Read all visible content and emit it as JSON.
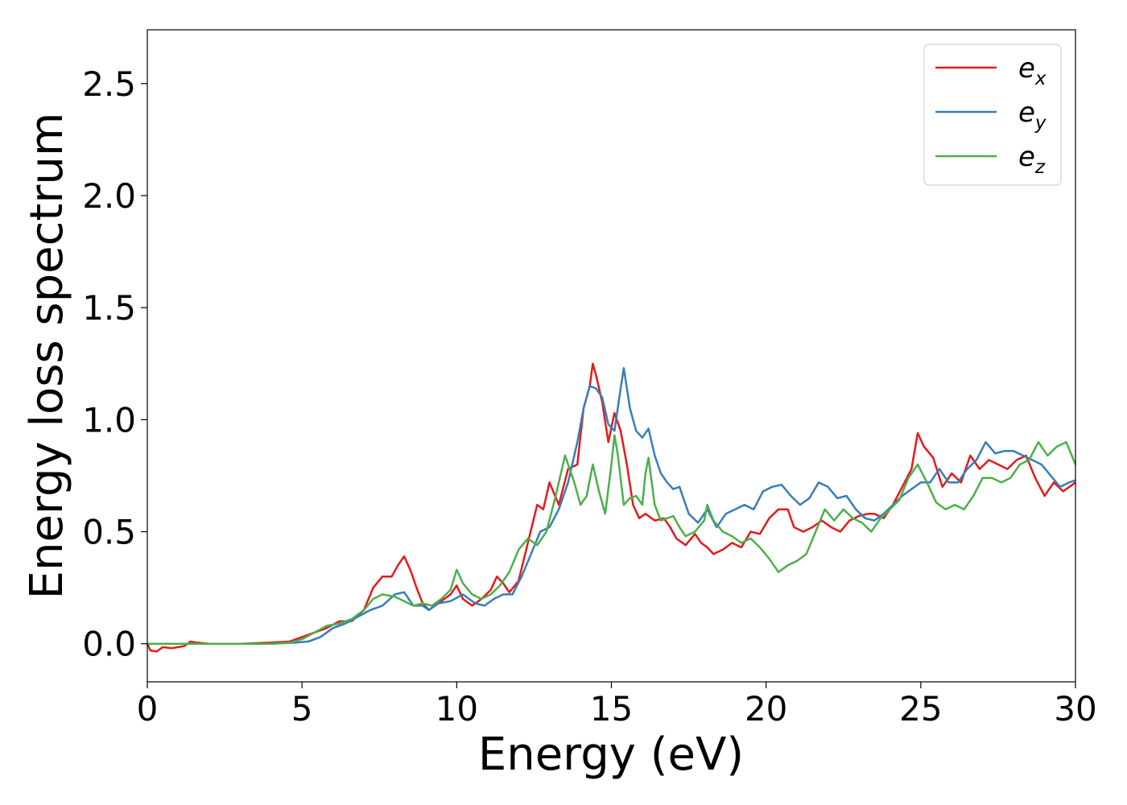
{
  "chart_data": {
    "type": "line",
    "title": "",
    "xlabel": "Energy (eV)",
    "ylabel": "Energy loss spectrum",
    "xlim": [
      0,
      30
    ],
    "ylim": [
      -0.17,
      2.74
    ],
    "xticks": [
      0,
      5,
      10,
      15,
      20,
      25,
      30
    ],
    "xtick_labels": [
      "0",
      "5",
      "10",
      "15",
      "20",
      "25",
      "30"
    ],
    "yticks": [
      0.0,
      0.5,
      1.0,
      1.5,
      2.0,
      2.5
    ],
    "ytick_labels": [
      "0.0",
      "0.5",
      "1.0",
      "1.5",
      "2.0",
      "2.5"
    ],
    "grid": false,
    "legend_position": "top-right",
    "series": [
      {
        "name": "e_x",
        "legend_base": "e",
        "legend_sub": "x",
        "color": "#e41a1c",
        "points": [
          [
            0,
            0.0
          ],
          [
            0.1,
            -0.03
          ],
          [
            0.3,
            -0.035
          ],
          [
            0.5,
            -0.015
          ],
          [
            0.8,
            -0.02
          ],
          [
            1.0,
            -0.015
          ],
          [
            1.2,
            -0.01
          ],
          [
            1.4,
            0.01
          ],
          [
            1.6,
            0.005
          ],
          [
            2.0,
            0.0
          ],
          [
            3.0,
            0.0
          ],
          [
            4.0,
            0.005
          ],
          [
            4.6,
            0.01
          ],
          [
            5.0,
            0.03
          ],
          [
            5.4,
            0.05
          ],
          [
            5.8,
            0.07
          ],
          [
            6.2,
            0.1
          ],
          [
            6.6,
            0.1
          ],
          [
            7.0,
            0.15
          ],
          [
            7.3,
            0.25
          ],
          [
            7.6,
            0.3
          ],
          [
            7.9,
            0.3
          ],
          [
            8.1,
            0.35
          ],
          [
            8.3,
            0.39
          ],
          [
            8.5,
            0.33
          ],
          [
            8.7,
            0.25
          ],
          [
            8.9,
            0.18
          ],
          [
            9.1,
            0.15
          ],
          [
            9.3,
            0.17
          ],
          [
            9.6,
            0.2
          ],
          [
            9.8,
            0.22
          ],
          [
            10.0,
            0.26
          ],
          [
            10.2,
            0.2
          ],
          [
            10.5,
            0.17
          ],
          [
            10.8,
            0.2
          ],
          [
            11.1,
            0.24
          ],
          [
            11.3,
            0.3
          ],
          [
            11.5,
            0.27
          ],
          [
            11.7,
            0.23
          ],
          [
            12.0,
            0.28
          ],
          [
            12.3,
            0.45
          ],
          [
            12.6,
            0.62
          ],
          [
            12.8,
            0.6
          ],
          [
            13.0,
            0.72
          ],
          [
            13.3,
            0.62
          ],
          [
            13.6,
            0.78
          ],
          [
            13.9,
            0.8
          ],
          [
            14.1,
            1.05
          ],
          [
            14.3,
            1.15
          ],
          [
            14.4,
            1.25
          ],
          [
            14.5,
            1.2
          ],
          [
            14.7,
            1.08
          ],
          [
            14.9,
            0.9
          ],
          [
            15.1,
            1.03
          ],
          [
            15.3,
            0.95
          ],
          [
            15.5,
            0.8
          ],
          [
            15.7,
            0.62
          ],
          [
            15.9,
            0.56
          ],
          [
            16.1,
            0.58
          ],
          [
            16.4,
            0.55
          ],
          [
            16.7,
            0.56
          ],
          [
            16.9,
            0.52
          ],
          [
            17.1,
            0.47
          ],
          [
            17.4,
            0.44
          ],
          [
            17.7,
            0.49
          ],
          [
            17.9,
            0.45
          ],
          [
            18.1,
            0.43
          ],
          [
            18.3,
            0.4
          ],
          [
            18.6,
            0.42
          ],
          [
            18.9,
            0.45
          ],
          [
            19.2,
            0.43
          ],
          [
            19.5,
            0.5
          ],
          [
            19.8,
            0.49
          ],
          [
            20.1,
            0.56
          ],
          [
            20.4,
            0.6
          ],
          [
            20.7,
            0.6
          ],
          [
            20.9,
            0.52
          ],
          [
            21.2,
            0.5
          ],
          [
            21.5,
            0.52
          ],
          [
            21.8,
            0.55
          ],
          [
            22.1,
            0.52
          ],
          [
            22.4,
            0.5
          ],
          [
            22.7,
            0.55
          ],
          [
            23.0,
            0.57
          ],
          [
            23.3,
            0.58
          ],
          [
            23.5,
            0.58
          ],
          [
            23.8,
            0.56
          ],
          [
            24.1,
            0.62
          ],
          [
            24.4,
            0.7
          ],
          [
            24.7,
            0.78
          ],
          [
            24.9,
            0.94
          ],
          [
            25.1,
            0.88
          ],
          [
            25.4,
            0.83
          ],
          [
            25.7,
            0.7
          ],
          [
            26.0,
            0.76
          ],
          [
            26.3,
            0.72
          ],
          [
            26.6,
            0.84
          ],
          [
            26.9,
            0.78
          ],
          [
            27.2,
            0.82
          ],
          [
            27.5,
            0.8
          ],
          [
            27.8,
            0.78
          ],
          [
            28.1,
            0.82
          ],
          [
            28.4,
            0.84
          ],
          [
            28.7,
            0.74
          ],
          [
            29.0,
            0.66
          ],
          [
            29.3,
            0.72
          ],
          [
            29.6,
            0.68
          ],
          [
            30.0,
            0.72
          ]
        ]
      },
      {
        "name": "e_y",
        "legend_base": "e",
        "legend_sub": "y",
        "color": "#377eb8",
        "points": [
          [
            0,
            0.0
          ],
          [
            1.0,
            0.0
          ],
          [
            2.0,
            0.0
          ],
          [
            3.0,
            0.0
          ],
          [
            4.0,
            0.0
          ],
          [
            4.8,
            0.005
          ],
          [
            5.2,
            0.01
          ],
          [
            5.6,
            0.03
          ],
          [
            6.0,
            0.07
          ],
          [
            6.4,
            0.09
          ],
          [
            6.8,
            0.12
          ],
          [
            7.2,
            0.15
          ],
          [
            7.6,
            0.17
          ],
          [
            8.0,
            0.22
          ],
          [
            8.3,
            0.23
          ],
          [
            8.6,
            0.17
          ],
          [
            8.9,
            0.17
          ],
          [
            9.1,
            0.15
          ],
          [
            9.4,
            0.18
          ],
          [
            9.8,
            0.19
          ],
          [
            10.2,
            0.22
          ],
          [
            10.6,
            0.18
          ],
          [
            10.9,
            0.17
          ],
          [
            11.2,
            0.2
          ],
          [
            11.5,
            0.22
          ],
          [
            11.8,
            0.22
          ],
          [
            12.1,
            0.3
          ],
          [
            12.4,
            0.4
          ],
          [
            12.7,
            0.5
          ],
          [
            13.0,
            0.52
          ],
          [
            13.3,
            0.6
          ],
          [
            13.6,
            0.72
          ],
          [
            13.9,
            0.9
          ],
          [
            14.1,
            1.05
          ],
          [
            14.3,
            1.15
          ],
          [
            14.5,
            1.14
          ],
          [
            14.7,
            1.1
          ],
          [
            14.9,
            0.98
          ],
          [
            15.1,
            0.95
          ],
          [
            15.3,
            1.14
          ],
          [
            15.4,
            1.23
          ],
          [
            15.6,
            1.05
          ],
          [
            15.8,
            0.95
          ],
          [
            16.0,
            0.92
          ],
          [
            16.2,
            0.96
          ],
          [
            16.4,
            0.84
          ],
          [
            16.6,
            0.76
          ],
          [
            16.8,
            0.72
          ],
          [
            17.0,
            0.69
          ],
          [
            17.2,
            0.7
          ],
          [
            17.5,
            0.58
          ],
          [
            17.8,
            0.54
          ],
          [
            18.1,
            0.6
          ],
          [
            18.4,
            0.52
          ],
          [
            18.7,
            0.58
          ],
          [
            19.0,
            0.6
          ],
          [
            19.3,
            0.62
          ],
          [
            19.6,
            0.6
          ],
          [
            19.9,
            0.68
          ],
          [
            20.2,
            0.7
          ],
          [
            20.5,
            0.71
          ],
          [
            20.8,
            0.66
          ],
          [
            21.1,
            0.62
          ],
          [
            21.4,
            0.65
          ],
          [
            21.7,
            0.72
          ],
          [
            22.0,
            0.7
          ],
          [
            22.3,
            0.65
          ],
          [
            22.6,
            0.66
          ],
          [
            22.9,
            0.6
          ],
          [
            23.2,
            0.56
          ],
          [
            23.5,
            0.55
          ],
          [
            23.8,
            0.58
          ],
          [
            24.1,
            0.62
          ],
          [
            24.4,
            0.66
          ],
          [
            24.7,
            0.69
          ],
          [
            25.0,
            0.72
          ],
          [
            25.3,
            0.72
          ],
          [
            25.6,
            0.78
          ],
          [
            25.9,
            0.72
          ],
          [
            26.2,
            0.72
          ],
          [
            26.5,
            0.78
          ],
          [
            26.8,
            0.82
          ],
          [
            27.1,
            0.9
          ],
          [
            27.4,
            0.85
          ],
          [
            27.7,
            0.86
          ],
          [
            28.0,
            0.86
          ],
          [
            28.3,
            0.84
          ],
          [
            28.6,
            0.82
          ],
          [
            28.9,
            0.8
          ],
          [
            29.2,
            0.75
          ],
          [
            29.5,
            0.7
          ],
          [
            29.8,
            0.72
          ],
          [
            30.0,
            0.73
          ]
        ]
      },
      {
        "name": "e_z",
        "legend_base": "e",
        "legend_sub": "z",
        "color": "#4daf4a",
        "points": [
          [
            0,
            0.0
          ],
          [
            1.0,
            0.0
          ],
          [
            2.0,
            0.0
          ],
          [
            3.0,
            0.0
          ],
          [
            4.0,
            0.0
          ],
          [
            4.6,
            0.005
          ],
          [
            5.0,
            0.02
          ],
          [
            5.4,
            0.05
          ],
          [
            5.8,
            0.08
          ],
          [
            6.2,
            0.09
          ],
          [
            6.6,
            0.11
          ],
          [
            7.0,
            0.15
          ],
          [
            7.3,
            0.2
          ],
          [
            7.6,
            0.22
          ],
          [
            8.0,
            0.21
          ],
          [
            8.3,
            0.19
          ],
          [
            8.6,
            0.17
          ],
          [
            8.9,
            0.18
          ],
          [
            9.2,
            0.17
          ],
          [
            9.5,
            0.2
          ],
          [
            9.8,
            0.24
          ],
          [
            10.0,
            0.33
          ],
          [
            10.2,
            0.27
          ],
          [
            10.5,
            0.22
          ],
          [
            10.8,
            0.2
          ],
          [
            11.1,
            0.22
          ],
          [
            11.4,
            0.26
          ],
          [
            11.7,
            0.32
          ],
          [
            12.0,
            0.42
          ],
          [
            12.3,
            0.47
          ],
          [
            12.6,
            0.44
          ],
          [
            12.9,
            0.5
          ],
          [
            13.2,
            0.66
          ],
          [
            13.5,
            0.84
          ],
          [
            13.8,
            0.72
          ],
          [
            14.0,
            0.62
          ],
          [
            14.2,
            0.66
          ],
          [
            14.4,
            0.8
          ],
          [
            14.6,
            0.68
          ],
          [
            14.8,
            0.58
          ],
          [
            15.0,
            0.8
          ],
          [
            15.1,
            0.93
          ],
          [
            15.2,
            0.85
          ],
          [
            15.4,
            0.62
          ],
          [
            15.6,
            0.65
          ],
          [
            15.8,
            0.66
          ],
          [
            16.0,
            0.62
          ],
          [
            16.1,
            0.76
          ],
          [
            16.2,
            0.83
          ],
          [
            16.4,
            0.62
          ],
          [
            16.6,
            0.55
          ],
          [
            16.8,
            0.56
          ],
          [
            17.0,
            0.57
          ],
          [
            17.2,
            0.52
          ],
          [
            17.4,
            0.48
          ],
          [
            17.7,
            0.5
          ],
          [
            18.0,
            0.55
          ],
          [
            18.1,
            0.62
          ],
          [
            18.3,
            0.55
          ],
          [
            18.6,
            0.5
          ],
          [
            18.9,
            0.48
          ],
          [
            19.2,
            0.45
          ],
          [
            19.5,
            0.47
          ],
          [
            19.8,
            0.43
          ],
          [
            20.1,
            0.38
          ],
          [
            20.4,
            0.32
          ],
          [
            20.7,
            0.35
          ],
          [
            21.0,
            0.37
          ],
          [
            21.3,
            0.4
          ],
          [
            21.6,
            0.5
          ],
          [
            21.9,
            0.6
          ],
          [
            22.2,
            0.55
          ],
          [
            22.5,
            0.6
          ],
          [
            22.8,
            0.56
          ],
          [
            23.1,
            0.54
          ],
          [
            23.4,
            0.5
          ],
          [
            23.7,
            0.56
          ],
          [
            24.0,
            0.6
          ],
          [
            24.3,
            0.64
          ],
          [
            24.6,
            0.74
          ],
          [
            24.9,
            0.8
          ],
          [
            25.2,
            0.72
          ],
          [
            25.5,
            0.63
          ],
          [
            25.8,
            0.6
          ],
          [
            26.1,
            0.62
          ],
          [
            26.4,
            0.6
          ],
          [
            26.7,
            0.66
          ],
          [
            27.0,
            0.74
          ],
          [
            27.3,
            0.74
          ],
          [
            27.6,
            0.72
          ],
          [
            27.9,
            0.74
          ],
          [
            28.2,
            0.8
          ],
          [
            28.5,
            0.82
          ],
          [
            28.8,
            0.9
          ],
          [
            29.1,
            0.84
          ],
          [
            29.4,
            0.88
          ],
          [
            29.7,
            0.9
          ],
          [
            30.0,
            0.8
          ]
        ]
      }
    ]
  }
}
